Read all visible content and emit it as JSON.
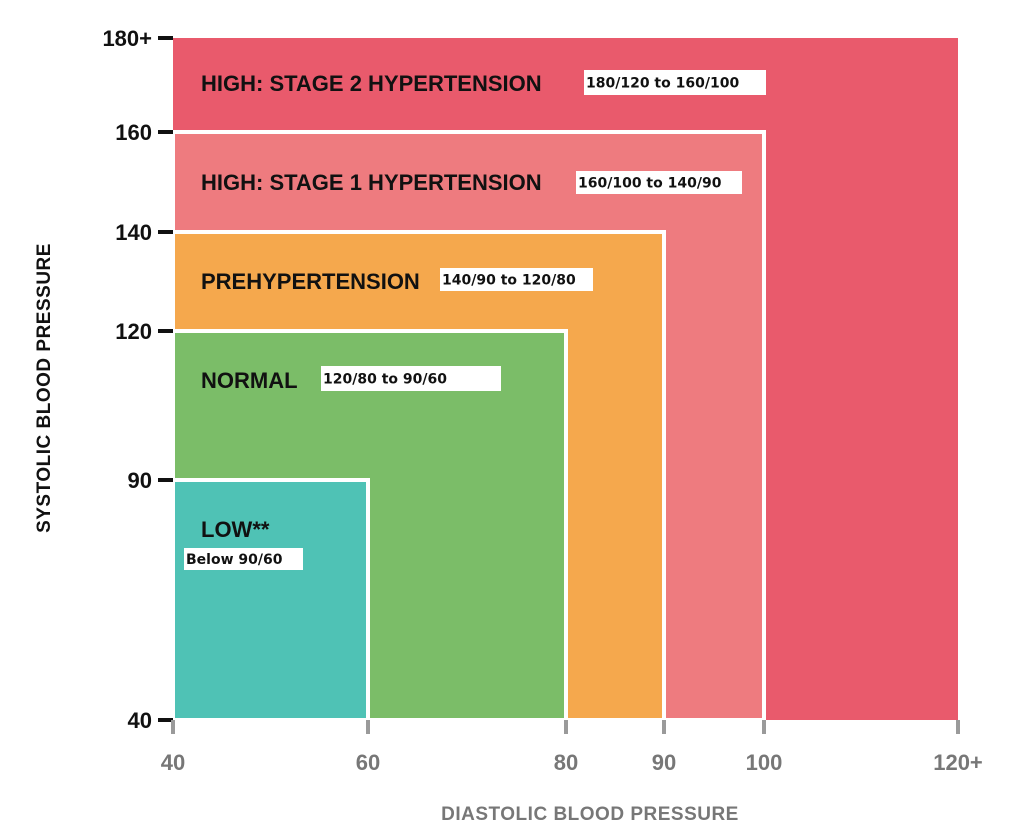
{
  "chart_data": {
    "type": "area",
    "title": "",
    "xlabel": "DIASTOLIC BLOOD PRESSURE",
    "ylabel": "SYSTOLIC BLOOD PRESSURE",
    "xlim": [
      40,
      120
    ],
    "ylim": [
      40,
      180
    ],
    "x_ticks": [
      {
        "value": 40,
        "label": "40"
      },
      {
        "value": 60,
        "label": "60"
      },
      {
        "value": 80,
        "label": "80"
      },
      {
        "value": 90,
        "label": "90"
      },
      {
        "value": 100,
        "label": "100"
      },
      {
        "value": 120,
        "label": "120+"
      }
    ],
    "y_ticks": [
      {
        "value": 40,
        "label": "40"
      },
      {
        "value": 90,
        "label": "90"
      },
      {
        "value": 120,
        "label": "120"
      },
      {
        "value": 140,
        "label": "140"
      },
      {
        "value": 160,
        "label": "160"
      },
      {
        "value": 180,
        "label": "180+"
      }
    ],
    "zones": [
      {
        "name": "HIGH: STAGE 2 HYPERTENSION",
        "range_label": "180/120 to 160/100",
        "max_diastolic": 120,
        "max_systolic": 180,
        "color": "#e95a6c"
      },
      {
        "name": "HIGH: STAGE 1 HYPERTENSION",
        "range_label": "160/100 to 140/90",
        "max_diastolic": 100,
        "max_systolic": 160,
        "color": "#ee7b7f"
      },
      {
        "name": "PREHYPERTENSION",
        "range_label": "140/90 to 120/80",
        "max_diastolic": 90,
        "max_systolic": 140,
        "color": "#f5a84d"
      },
      {
        "name": "NORMAL",
        "range_label": "120/80 to 90/60",
        "max_diastolic": 80,
        "max_systolic": 120,
        "color": "#7bbd68"
      },
      {
        "name": "LOW**",
        "range_label": "Below 90/60",
        "max_diastolic": 60,
        "max_systolic": 90,
        "color": "#4fc2b5"
      }
    ]
  }
}
